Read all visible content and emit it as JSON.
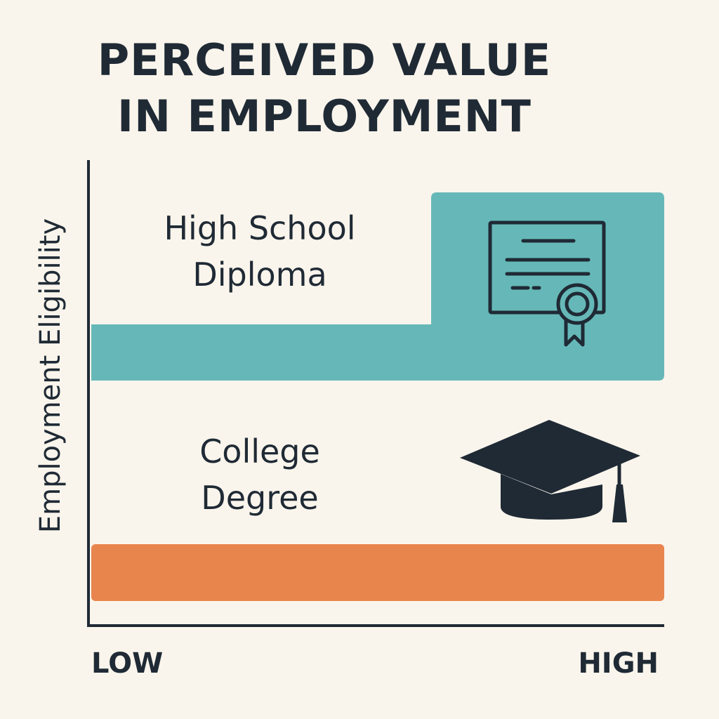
{
  "title": {
    "line1": "PERCEIVED VALUE",
    "line2": "IN EMPLOYMENT"
  },
  "colors": {
    "background": "#faf5ec",
    "axis": "#1f2a35",
    "ink": "#1f2a35",
    "high_school": "#66b8b8",
    "college": "#e8854d"
  },
  "icons": {
    "high_school": "diploma-certificate-icon",
    "college": "graduation-cap-icon"
  },
  "chart_data": {
    "type": "bar",
    "orientation": "horizontal",
    "title": "PERCEIVED VALUE IN EMPLOYMENT",
    "ylabel": "Employment Eligibility",
    "xlabel": "",
    "x_tick_labels": [
      "LOW",
      "HIGH"
    ],
    "xlim": [
      "LOW",
      "HIGH"
    ],
    "grid": false,
    "legend": "none",
    "categories": [
      {
        "label_line1": "High School",
        "label_line2": "Diploma",
        "value": "HIGH",
        "color": "#66b8b8",
        "icon": "diploma-certificate-icon"
      },
      {
        "label_line1": "College",
        "label_line2": "Degree",
        "value": "HIGH",
        "color": "#e8854d",
        "icon": "graduation-cap-icon"
      }
    ]
  }
}
